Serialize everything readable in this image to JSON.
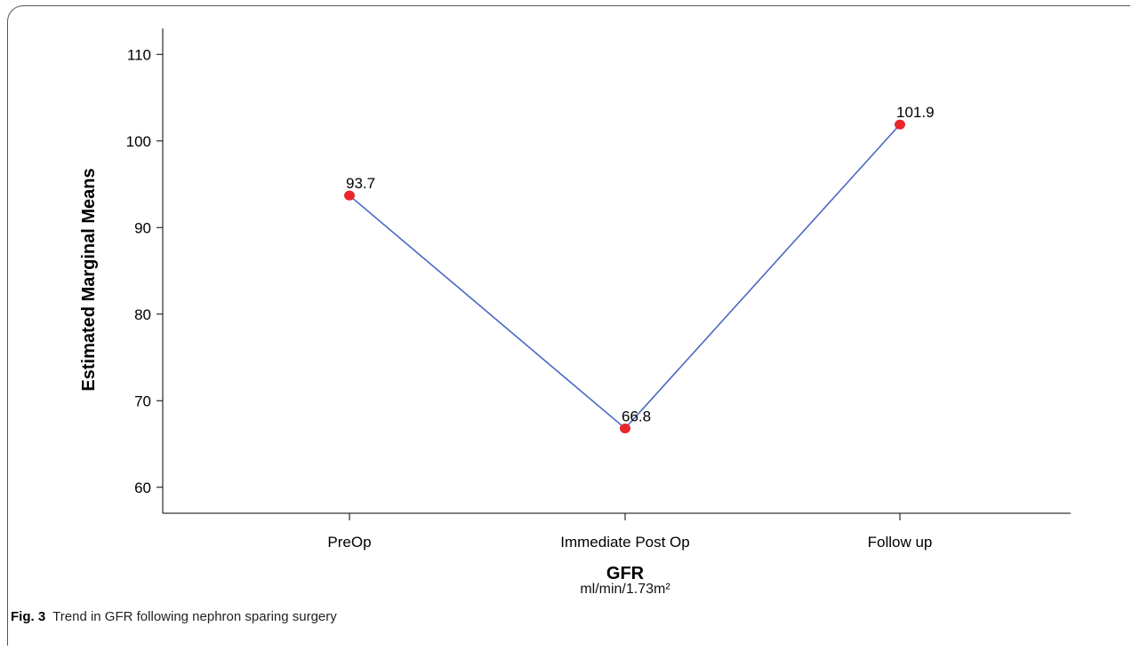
{
  "chart_data": {
    "type": "line",
    "categories": [
      "PreOp",
      "Immediate Post Op",
      "Follow up"
    ],
    "series": [
      {
        "values": [
          93.7,
          66.8,
          101.9
        ],
        "data_labels": [
          "93.7",
          "66.8",
          "101.9"
        ]
      }
    ],
    "xlabel": "GFR",
    "xlabel_units": "ml/min/1.73m²",
    "ylabel": "Estimated Marginal Means",
    "ylim": [
      57,
      113
    ],
    "yticks": [
      60,
      70,
      80,
      90,
      100,
      110
    ],
    "grid": false,
    "line_color": "#4a67c4",
    "marker_color": "#e8262b"
  },
  "caption": {
    "label": "Fig. 3",
    "text": "Trend in GFR following nephron sparing surgery"
  }
}
